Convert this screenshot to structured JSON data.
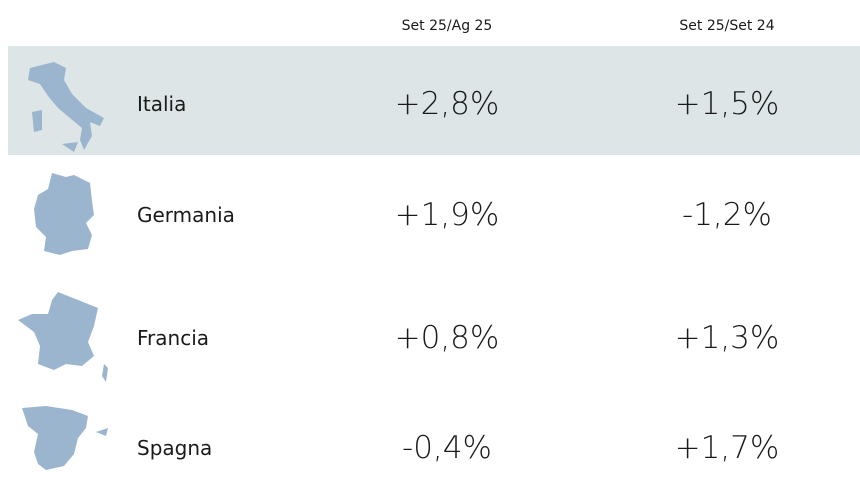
{
  "table": {
    "columns": [
      "Set 25/Ag 25",
      "Set 25/Set 24"
    ],
    "rows": [
      {
        "name": "Italia",
        "cells": [
          "+2,8%",
          "+1,5%"
        ]
      },
      {
        "name": "Germania",
        "cells": [
          "+1,9%",
          "-1,2%"
        ]
      },
      {
        "name": "Francia",
        "cells": [
          "+0,8%",
          "+1,3%"
        ]
      },
      {
        "name": "Spagna",
        "cells": [
          "-0,4%",
          "+1,7%"
        ]
      }
    ]
  }
}
